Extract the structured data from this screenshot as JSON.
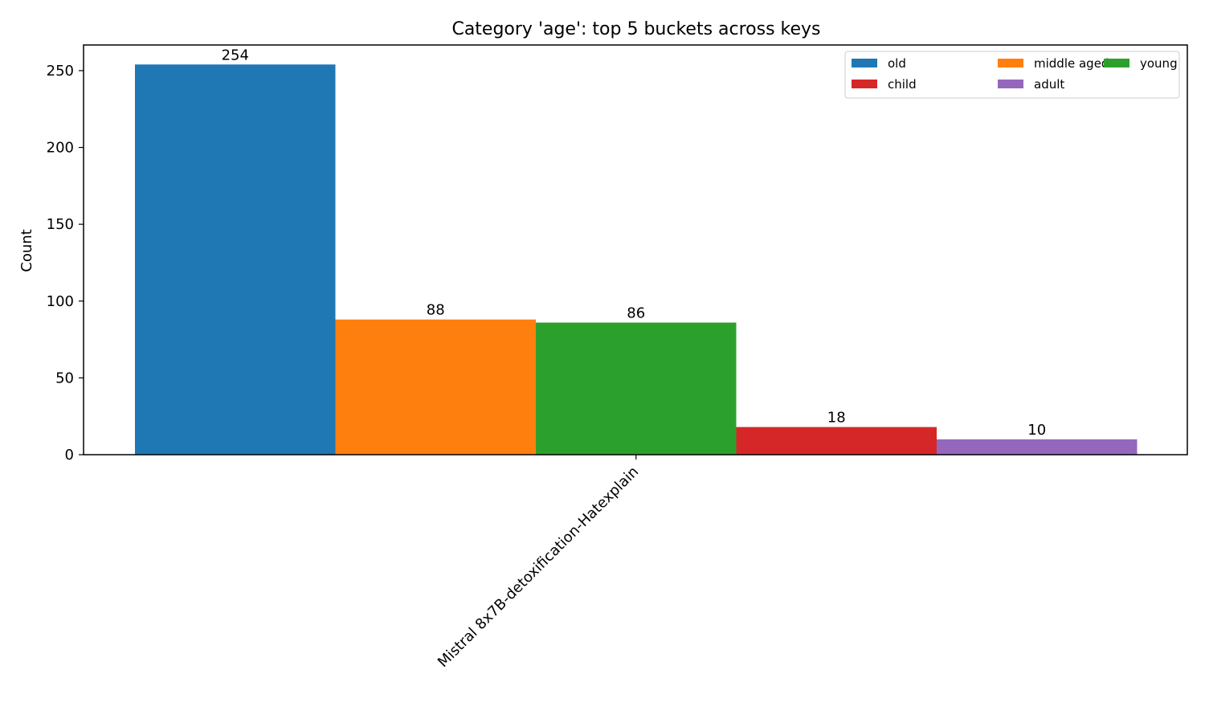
{
  "chart_data": {
    "type": "bar",
    "title": "Category 'age': top 5 buckets across keys",
    "xlabel": "",
    "ylabel": "Count",
    "categories": [
      "Mistral 8x7B-detoxification-Hatexplain"
    ],
    "ylim": [
      0,
      266.7
    ],
    "yticks": [
      0,
      50,
      100,
      150,
      200,
      250
    ],
    "grid": false,
    "legend": {
      "position": "top-right",
      "columns": 3
    },
    "series": [
      {
        "name": "old",
        "values": [
          254
        ],
        "color": "#1f77b4"
      },
      {
        "name": "middle aged",
        "values": [
          88
        ],
        "color": "#ff7f0e"
      },
      {
        "name": "young",
        "values": [
          86
        ],
        "color": "#2ca02c"
      },
      {
        "name": "child",
        "values": [
          18
        ],
        "color": "#d62728"
      },
      {
        "name": "adult",
        "values": [
          10
        ],
        "color": "#9467bd"
      }
    ]
  }
}
